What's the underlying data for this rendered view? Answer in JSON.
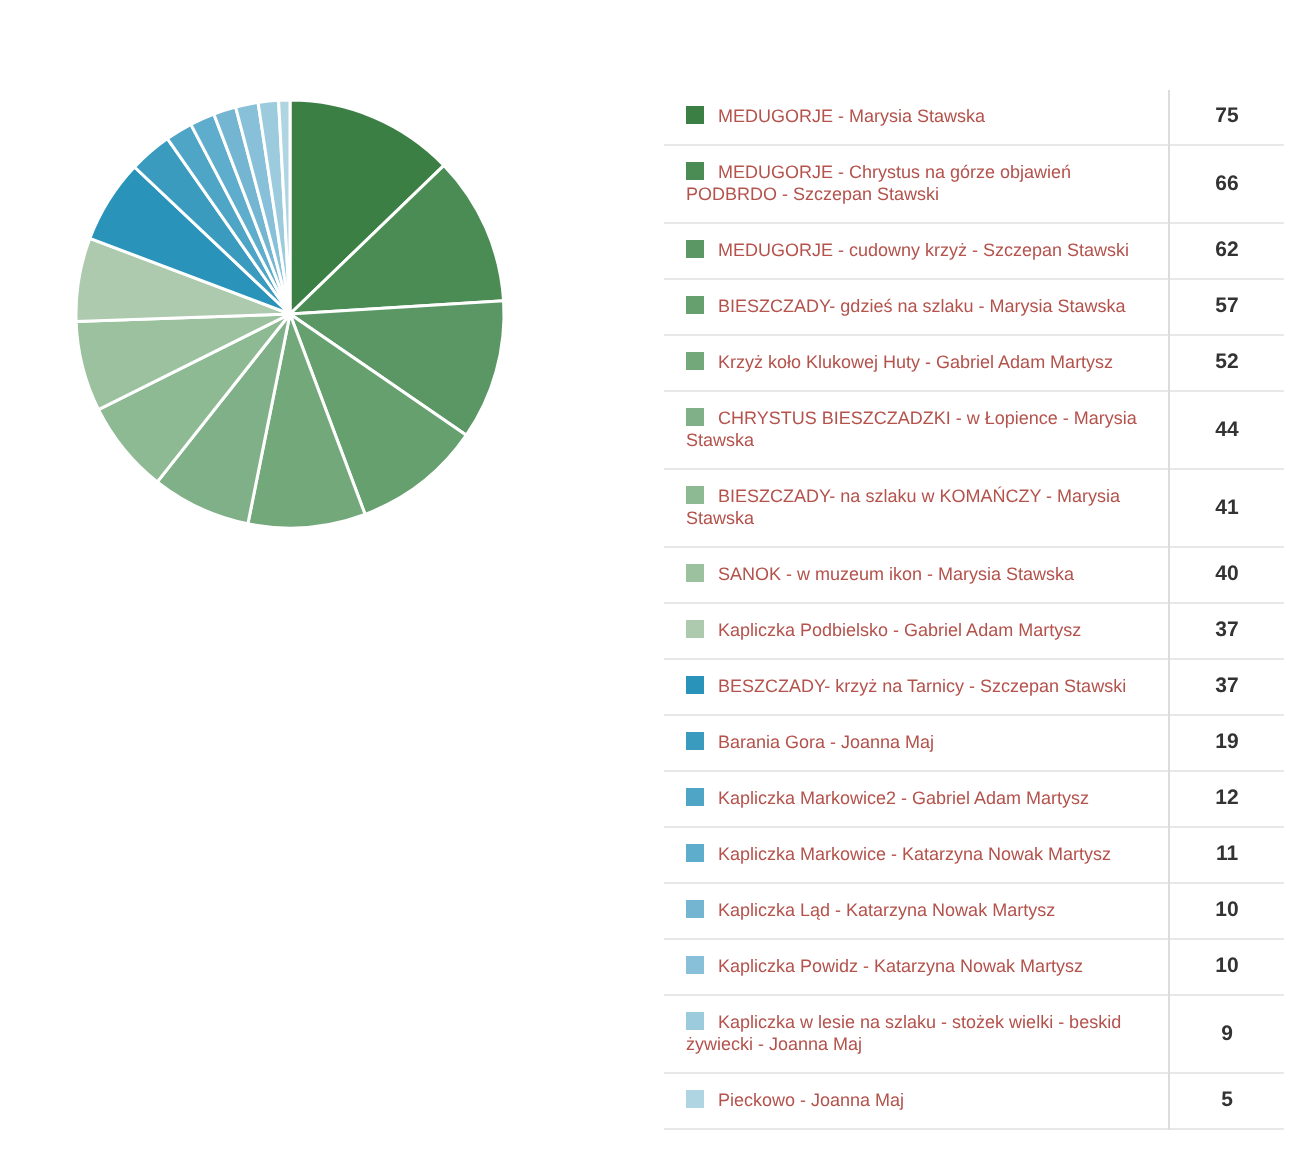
{
  "chart_data": {
    "type": "pie",
    "categories": [
      "MEDUGORJE - Marysia Stawska",
      "MEDUGORJE - Chrystus na górze objawień PODBRDO - Szczepan Stawski",
      "MEDUGORJE - cudowny krzyż - Szczepan Stawski",
      "BIESZCZADY- gdzieś na szlaku - Marysia Stawska",
      "Krzyż koło Klukowej Huty - Gabriel Adam Martysz",
      "CHRYSTUS BIESZCZADZKI - w Łopience - Marysia Stawska",
      "BIESZCZADY- na szlaku w KOMAŃCZY - Marysia Stawska",
      "SANOK - w muzeum ikon - Marysia Stawska",
      "Kapliczka Podbielsko - Gabriel Adam Martysz",
      "BESZCZADY- krzyż na Tarnicy - Szczepan Stawski",
      "Barania Gora - Joanna Maj",
      "Kapliczka Markowice2 - Gabriel Adam Martysz",
      "Kapliczka Markowice - Katarzyna Nowak Martysz",
      "Kapliczka Ląd - Katarzyna Nowak Martysz",
      "Kapliczka Powidz - Katarzyna Nowak Martysz",
      "Kapliczka w lesie na szlaku - stożek wielki - beskid żywiecki - Joanna Maj",
      "Pieckowo - Joanna Maj"
    ],
    "values": [
      75,
      66,
      62,
      57,
      52,
      44,
      41,
      40,
      37,
      37,
      19,
      12,
      11,
      10,
      10,
      9,
      5
    ],
    "colors": [
      "#3b7f45",
      "#4b8c55",
      "#5a9764",
      "#67a06f",
      "#73a87b",
      "#80b087",
      "#8dba92",
      "#9bc19e",
      "#adc9ae",
      "#2a93b9",
      "#3a9bbf",
      "#4ea5c6",
      "#5fadcc",
      "#74b6d2",
      "#87c0d8",
      "#9ccbdd",
      "#afd5e3"
    ],
    "legend": "right",
    "data_labels": true
  }
}
